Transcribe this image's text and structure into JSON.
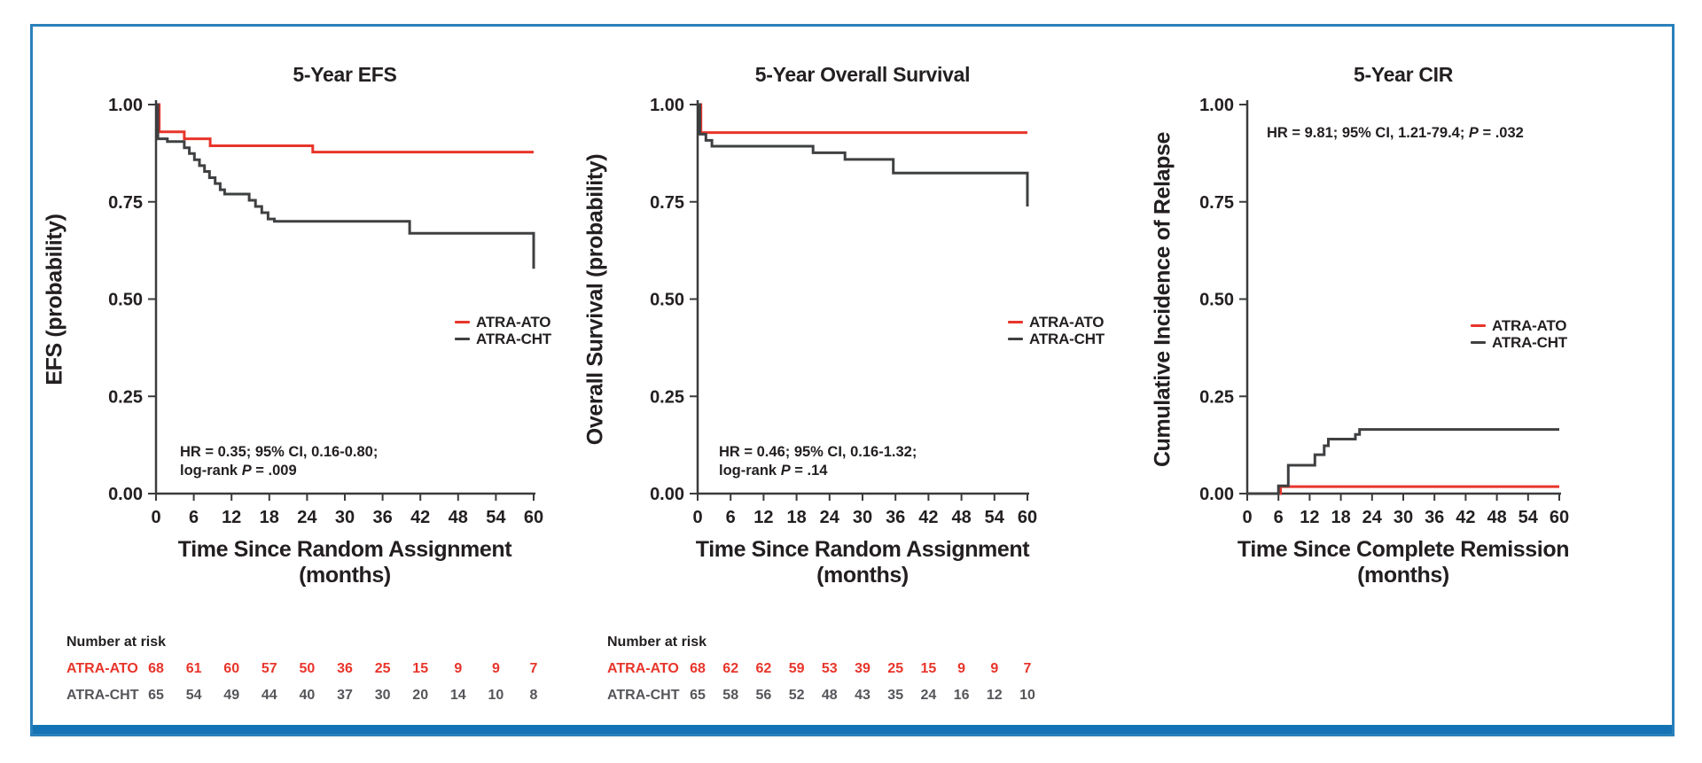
{
  "colors": {
    "atra_ato_red": "#E8352B",
    "atra_cht_dark": "#3F4042",
    "frame_blue": "#2A80BA",
    "bottom_bar_blue": "#1473B4",
    "risk_cht_gray": "#55565A",
    "text_dark": "#231F20"
  },
  "chart_data": [
    {
      "type": "line",
      "subtype": "kaplan-meier-step",
      "title": "5-Year EFS",
      "ylabel": "EFS (probability)",
      "xlabel_line1": "Time Since Random Assignment",
      "xlabel_line2": "(months)",
      "xlim": [
        0,
        60
      ],
      "ylim": [
        0,
        1
      ],
      "xticks": [
        0,
        6,
        12,
        18,
        24,
        30,
        36,
        42,
        48,
        54,
        60
      ],
      "yticks": [
        1.0,
        0.75,
        0.5,
        0.25,
        0.0
      ],
      "grid": false,
      "legend_position": "right-center",
      "annotation": {
        "line1": "HR = 0.35; 95% CI, 0.16-0.80;",
        "line2_prefix": "log-rank ",
        "p_italic": "P",
        "line2_suffix": " = .009",
        "position": "bottom-left"
      },
      "series": [
        {
          "name": "ATRA-ATO",
          "color": "#E8352B",
          "points": [
            [
              0,
              1.0
            ],
            [
              0.5,
              0.93
            ],
            [
              4.5,
              0.912
            ],
            [
              8.6,
              0.894
            ],
            [
              24.9,
              0.878
            ],
            [
              60,
              0.878
            ]
          ]
        },
        {
          "name": "ATRA-CHT",
          "color": "#3F4042",
          "points": [
            [
              0,
              1.0
            ],
            [
              0.3,
              0.912
            ],
            [
              1.8,
              0.905
            ],
            [
              4.5,
              0.889
            ],
            [
              5.3,
              0.874
            ],
            [
              6.1,
              0.858
            ],
            [
              6.9,
              0.843
            ],
            [
              7.7,
              0.828
            ],
            [
              8.5,
              0.812
            ],
            [
              9.4,
              0.797
            ],
            [
              10.2,
              0.781
            ],
            [
              10.9,
              0.77
            ],
            [
              14.8,
              0.754
            ],
            [
              15.8,
              0.738
            ],
            [
              16.8,
              0.722
            ],
            [
              17.8,
              0.706
            ],
            [
              18.8,
              0.7
            ],
            [
              40.3,
              0.669
            ],
            [
              60,
              0.578
            ]
          ]
        }
      ],
      "number_at_risk": {
        "header": "Number at risk",
        "rows": [
          {
            "name": "ATRA-ATO",
            "color": "#E8352B",
            "values": [
              68,
              61,
              60,
              57,
              50,
              36,
              25,
              15,
              9,
              9,
              7
            ]
          },
          {
            "name": "ATRA-CHT",
            "color": "#55565A",
            "values": [
              65,
              54,
              49,
              44,
              40,
              37,
              30,
              20,
              14,
              10,
              8
            ]
          }
        ]
      }
    },
    {
      "type": "line",
      "subtype": "kaplan-meier-step",
      "title": "5-Year Overall Survival",
      "ylabel": "Overall Survival (probability)",
      "xlabel_line1": "Time Since Random Assignment",
      "xlabel_line2": "(months)",
      "xlim": [
        0,
        60
      ],
      "ylim": [
        0,
        1
      ],
      "xticks": [
        0,
        6,
        12,
        18,
        24,
        30,
        36,
        42,
        48,
        54,
        60
      ],
      "yticks": [
        1.0,
        0.75,
        0.5,
        0.25,
        0.0
      ],
      "grid": false,
      "legend_position": "right-center",
      "annotation": {
        "line1": "HR = 0.46; 95% CI, 0.16-1.32;",
        "line2_prefix": "log-rank ",
        "p_italic": "P",
        "line2_suffix": " = .14",
        "position": "bottom-left"
      },
      "series": [
        {
          "name": "ATRA-ATO",
          "color": "#E8352B",
          "points": [
            [
              0,
              1.0
            ],
            [
              0.6,
              0.928
            ],
            [
              60,
              0.928
            ]
          ]
        },
        {
          "name": "ATRA-CHT",
          "color": "#3F4042",
          "points": [
            [
              0,
              1.0
            ],
            [
              0.4,
              0.924
            ],
            [
              1.5,
              0.908
            ],
            [
              2.6,
              0.893
            ],
            [
              21.0,
              0.876
            ],
            [
              26.8,
              0.859
            ],
            [
              35.6,
              0.824
            ],
            [
              60,
              0.738
            ]
          ]
        }
      ],
      "number_at_risk": {
        "header": "Number at risk",
        "rows": [
          {
            "name": "ATRA-ATO",
            "color": "#E8352B",
            "values": [
              68,
              62,
              62,
              59,
              53,
              39,
              25,
              15,
              9,
              9,
              7
            ]
          },
          {
            "name": "ATRA-CHT",
            "color": "#55565A",
            "values": [
              65,
              58,
              56,
              52,
              48,
              43,
              35,
              24,
              16,
              12,
              10
            ]
          }
        ]
      }
    },
    {
      "type": "line",
      "subtype": "cumulative-incidence-step",
      "title": "5-Year CIR",
      "ylabel": "Cumulative Incidence of Relapse",
      "xlabel_line1": "Time Since Complete Remission",
      "xlabel_line2": "(months)",
      "xlim": [
        0,
        60
      ],
      "ylim": [
        0,
        1
      ],
      "xticks": [
        0,
        6,
        12,
        18,
        24,
        30,
        36,
        42,
        48,
        54,
        60
      ],
      "yticks": [
        1.0,
        0.75,
        0.5,
        0.25,
        0.0
      ],
      "grid": false,
      "legend_position": "right-center",
      "annotation": {
        "line1": "",
        "line2_prefix": "HR = 9.81; 95% CI, 1.21-79.4; ",
        "p_italic": "P",
        "line2_suffix": " = .032",
        "position": "top-left"
      },
      "series": [
        {
          "name": "ATRA-ATO",
          "color": "#E8352B",
          "points": [
            [
              0,
              0
            ],
            [
              6.4,
              0.018
            ],
            [
              60,
              0.018
            ]
          ]
        },
        {
          "name": "ATRA-CHT",
          "color": "#3F4042",
          "points": [
            [
              0,
              0
            ],
            [
              6.0,
              0.02
            ],
            [
              7.9,
              0.073
            ],
            [
              13.0,
              0.1
            ],
            [
              14.8,
              0.123
            ],
            [
              15.6,
              0.14
            ],
            [
              20.8,
              0.152
            ],
            [
              21.6,
              0.165
            ],
            [
              60,
              0.165
            ]
          ]
        }
      ]
    }
  ]
}
